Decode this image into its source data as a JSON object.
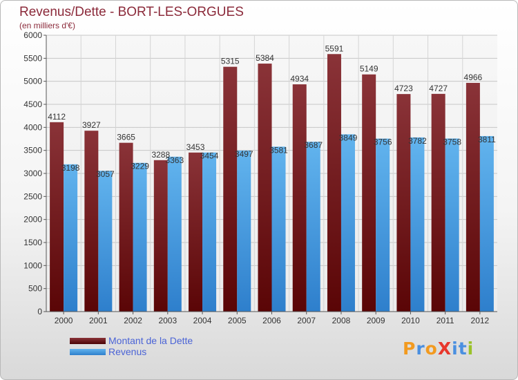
{
  "title": "Revenus/Dette - BORT-LES-ORGUES",
  "subtitle": "(en milliers d'€)",
  "chart_data": {
    "type": "bar",
    "title": "Revenus/Dette - BORT-LES-ORGUES",
    "subtitle": "(en milliers d'€)",
    "xlabel": "",
    "ylabel": "",
    "categories": [
      "2000",
      "2001",
      "2002",
      "2003",
      "2004",
      "2005",
      "2006",
      "2007",
      "2008",
      "2009",
      "2010",
      "2011",
      "2012"
    ],
    "series": [
      {
        "name": "Montant de la Dette",
        "values": [
          4112,
          3927,
          3665,
          3288,
          3453,
          5315,
          5384,
          4934,
          5591,
          5149,
          4723,
          4727,
          4966
        ],
        "color": "#7a1a1e"
      },
      {
        "name": "Revenus",
        "values": [
          3198,
          3057,
          3229,
          3363,
          3454,
          3497,
          3581,
          3687,
          3849,
          3756,
          3782,
          3758,
          3811
        ],
        "color": "#4fa6e6"
      }
    ],
    "ylim": [
      0,
      6000
    ],
    "yticks": [
      0,
      500,
      1000,
      1500,
      2000,
      2500,
      3000,
      3500,
      4000,
      4500,
      5000,
      5500,
      6000
    ],
    "grid": true,
    "legend_position": "bottom-left"
  },
  "logo": {
    "text": "ProXiti",
    "colors": [
      "#f29a1f",
      "#4a8fe0",
      "#f29a1f",
      "#e8372c",
      "#4a8fe0",
      "#4a8fe0",
      "#9ac229"
    ]
  }
}
